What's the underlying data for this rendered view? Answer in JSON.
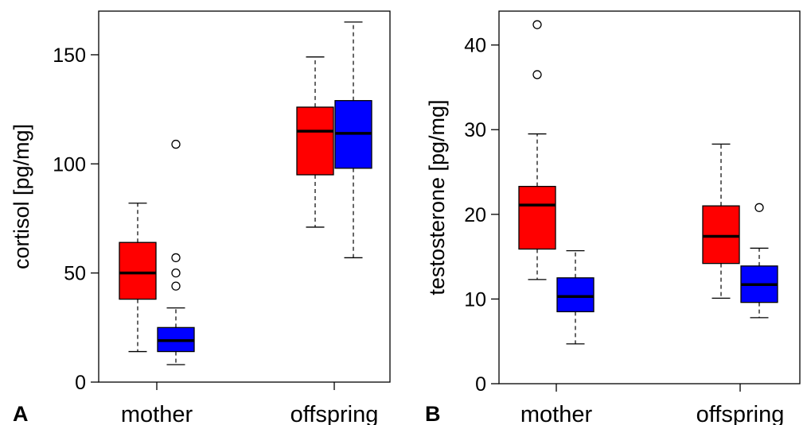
{
  "colors": {
    "group1": "#ff0000",
    "group2": "#0000ff",
    "outline": "#000000"
  },
  "chart_data": [
    {
      "type": "boxplot",
      "panel_label": "A",
      "ylabel": "cortisol [pg/mg]",
      "categories": [
        "mother",
        "offspring"
      ],
      "ylim": [
        0,
        170
      ],
      "yticks": [
        0,
        50,
        100,
        150
      ],
      "grid": false,
      "series": [
        {
          "color": "#ff0000",
          "boxes": [
            {
              "category": "mother",
              "whisker_low": 14,
              "q1": 38,
              "median": 50,
              "q3": 64,
              "whisker_high": 82,
              "outliers": []
            },
            {
              "category": "offspring",
              "whisker_low": 71,
              "q1": 95,
              "median": 115,
              "q3": 126,
              "whisker_high": 149,
              "outliers": []
            }
          ]
        },
        {
          "color": "#0000ff",
          "boxes": [
            {
              "category": "mother",
              "whisker_low": 8,
              "q1": 14,
              "median": 19,
              "q3": 25,
              "whisker_high": 34,
              "outliers": [
                44,
                50,
                57,
                109
              ]
            },
            {
              "category": "offspring",
              "whisker_low": 57,
              "q1": 98,
              "median": 114,
              "q3": 129,
              "whisker_high": 165,
              "outliers": []
            }
          ]
        }
      ]
    },
    {
      "type": "boxplot",
      "panel_label": "B",
      "ylabel": "testosterone [pg/mg]",
      "categories": [
        "mother",
        "offspring"
      ],
      "ylim": [
        0,
        44
      ],
      "yticks": [
        0,
        10,
        20,
        30,
        40
      ],
      "grid": false,
      "series": [
        {
          "color": "#ff0000",
          "boxes": [
            {
              "category": "mother",
              "whisker_low": 12.3,
              "q1": 15.9,
              "median": 21.1,
              "q3": 23.3,
              "whisker_high": 29.5,
              "outliers": [
                36.5,
                42.4
              ]
            },
            {
              "category": "offspring",
              "whisker_low": 10.1,
              "q1": 14.2,
              "median": 17.4,
              "q3": 21.0,
              "whisker_high": 28.3,
              "outliers": []
            }
          ]
        },
        {
          "color": "#0000ff",
          "boxes": [
            {
              "category": "mother",
              "whisker_low": 4.7,
              "q1": 8.5,
              "median": 10.3,
              "q3": 12.5,
              "whisker_high": 15.7,
              "outliers": []
            },
            {
              "category": "offspring",
              "whisker_low": 7.8,
              "q1": 9.6,
              "median": 11.7,
              "q3": 13.9,
              "whisker_high": 16.0,
              "outliers": [
                20.8
              ]
            }
          ]
        }
      ]
    }
  ]
}
